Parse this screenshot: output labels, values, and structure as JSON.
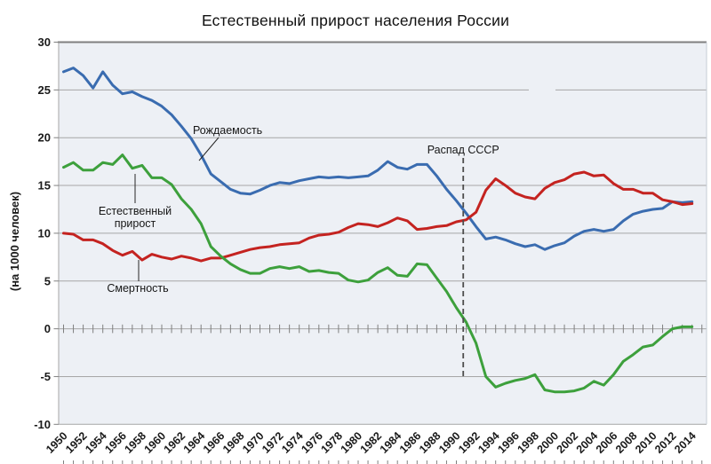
{
  "title": "Естественный прирост населения России",
  "chart_data": {
    "type": "line",
    "title": "Естественный прирост населения России",
    "xlabel": "",
    "ylabel": "(на 1000 человек)",
    "ylim": [
      -10,
      30
    ],
    "grid": "horizontal",
    "legend": "inline-labels",
    "y_ticks": [
      30,
      25,
      20,
      15,
      10,
      5,
      0,
      -5,
      -10
    ],
    "x_tick_labels": [
      "1950",
      "1952",
      "1954",
      "1956",
      "1958",
      "1960",
      "1962",
      "1964",
      "1966",
      "1968",
      "1970",
      "1972",
      "1974",
      "1976",
      "1978",
      "1980",
      "1982",
      "1984",
      "1986",
      "1988",
      "1990",
      "1992",
      "1994",
      "1996",
      "1998",
      "2000",
      "2002",
      "2004",
      "2006",
      "2008",
      "2010",
      "2012",
      "2014"
    ],
    "x": [
      1950,
      1951,
      1952,
      1953,
      1954,
      1955,
      1956,
      1957,
      1958,
      1959,
      1960,
      1961,
      1962,
      1963,
      1964,
      1965,
      1966,
      1967,
      1968,
      1969,
      1970,
      1971,
      1972,
      1973,
      1974,
      1975,
      1976,
      1977,
      1978,
      1979,
      1980,
      1981,
      1982,
      1983,
      1984,
      1985,
      1986,
      1987,
      1988,
      1989,
      1990,
      1991,
      1992,
      1993,
      1994,
      1995,
      1996,
      1997,
      1998,
      1999,
      2000,
      2001,
      2002,
      2003,
      2004,
      2005,
      2006,
      2007,
      2008,
      2009,
      2010,
      2011,
      2012,
      2013,
      2014
    ],
    "series": [
      {
        "id": "birth-rate-line",
        "name": "Рождаемость",
        "color": "#3a6cb0",
        "values": [
          26.9,
          27.3,
          26.5,
          25.2,
          26.9,
          25.5,
          24.6,
          24.8,
          24.3,
          23.9,
          23.3,
          22.4,
          21.2,
          19.9,
          18.2,
          16.2,
          15.4,
          14.6,
          14.2,
          14.1,
          14.5,
          15.0,
          15.3,
          15.2,
          15.5,
          15.7,
          15.9,
          15.8,
          15.9,
          15.8,
          15.9,
          16.0,
          16.6,
          17.5,
          16.9,
          16.7,
          17.2,
          17.2,
          16.0,
          14.6,
          13.4,
          12.1,
          10.7,
          9.4,
          9.6,
          9.3,
          8.9,
          8.6,
          8.8,
          8.3,
          8.7,
          9.0,
          9.7,
          10.2,
          10.4,
          10.2,
          10.4,
          11.3,
          12.0,
          12.3,
          12.5,
          12.6,
          13.3,
          13.2,
          13.3
        ]
      },
      {
        "id": "death-rate-line",
        "name": "Смертность",
        "color": "#c42320",
        "values": [
          10.0,
          9.9,
          9.3,
          9.3,
          8.9,
          8.2,
          7.7,
          8.1,
          7.2,
          7.8,
          7.5,
          7.3,
          7.6,
          7.4,
          7.1,
          7.4,
          7.4,
          7.7,
          8.0,
          8.3,
          8.5,
          8.6,
          8.8,
          8.9,
          9.0,
          9.5,
          9.8,
          9.9,
          10.1,
          10.6,
          11.0,
          10.9,
          10.7,
          11.1,
          11.6,
          11.3,
          10.4,
          10.5,
          10.7,
          10.8,
          11.2,
          11.4,
          12.2,
          14.5,
          15.7,
          15.0,
          14.2,
          13.8,
          13.6,
          14.7,
          15.3,
          15.6,
          16.2,
          16.4,
          16.0,
          16.1,
          15.2,
          14.6,
          14.6,
          14.2,
          14.2,
          13.5,
          13.3,
          13.0,
          13.1
        ]
      },
      {
        "id": "natural-increase-line",
        "name": "Естественный прирост",
        "color": "#3da03c",
        "values": [
          16.9,
          17.4,
          16.6,
          16.6,
          17.4,
          17.2,
          18.2,
          16.8,
          17.1,
          15.8,
          15.8,
          15.1,
          13.6,
          12.5,
          11.0,
          8.6,
          7.6,
          6.8,
          6.2,
          5.8,
          5.8,
          6.3,
          6.5,
          6.3,
          6.5,
          6.0,
          6.1,
          5.9,
          5.8,
          5.1,
          4.9,
          5.1,
          5.9,
          6.4,
          5.6,
          5.5,
          6.8,
          6.7,
          5.3,
          3.9,
          2.2,
          0.7,
          -1.5,
          -5.0,
          -6.1,
          -5.7,
          -5.4,
          -5.2,
          -4.8,
          -6.4,
          -6.6,
          -6.6,
          -6.5,
          -6.2,
          -5.5,
          -5.9,
          -4.8,
          -3.4,
          -2.7,
          -1.9,
          -1.7,
          -0.8,
          0.0,
          0.2,
          0.2
        ]
      }
    ],
    "annotations": {
      "ussr_collapse": {
        "text": "Распад СССР",
        "year": 1990.7
      },
      "birth": {
        "text": "Рождаемость"
      },
      "death": {
        "text": "Смертность"
      },
      "natural": {
        "line1": "Естественный",
        "line2": "прирост"
      }
    },
    "colors": {
      "plot_bg": "#edf0f5",
      "grid": "#a6a6a6",
      "top_border": "#7f7f7f",
      "tick": "#7f7f7f",
      "right_border": "#c6ccd6",
      "dashed": "#4d4d4d",
      "pointer": "#262626"
    }
  }
}
